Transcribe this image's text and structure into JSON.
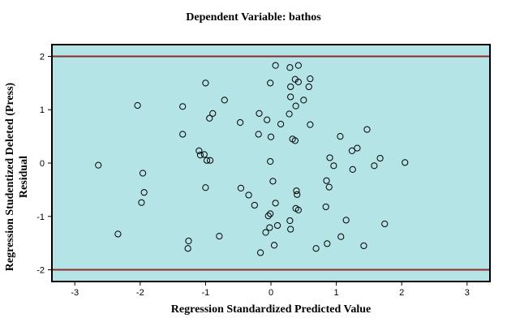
{
  "chart_data": {
    "type": "scatter",
    "title": "Dependent Variable: bathos",
    "xlabel": "Regression Standardized Predicted Value",
    "ylabel_line1": "Regression Studentized Deleted (Press)",
    "ylabel_line2": "Residual",
    "xlim": [
      -3.35,
      3.35
    ],
    "ylim": [
      -2.22,
      2.22
    ],
    "x_ticks": [
      -3,
      -2,
      -1,
      0,
      1,
      2,
      3
    ],
    "x_tick_labels": [
      "-3",
      "-2",
      "-1",
      "0",
      "1",
      "2",
      "3"
    ],
    "y_ticks": [
      -2,
      -1,
      0,
      1,
      2
    ],
    "y_tick_labels": [
      "-2",
      "-1",
      "0",
      "1",
      "2"
    ],
    "reference_lines_y": [
      2,
      -2
    ],
    "grid": false,
    "colors": {
      "plot_background": "#b4e4e6",
      "reference_line": "#8b2a2a",
      "marker_stroke": "#000000",
      "frame": "#000000"
    },
    "points": [
      {
        "x": 0.07,
        "y": 1.83
      },
      {
        "x": 0.29,
        "y": 1.79
      },
      {
        "x": 0.42,
        "y": 1.83
      },
      {
        "x": 0.37,
        "y": 1.57
      },
      {
        "x": 0.6,
        "y": 1.58
      },
      {
        "x": 0.42,
        "y": 1.52
      },
      {
        "x": -1.0,
        "y": 1.5
      },
      {
        "x": -0.01,
        "y": 1.5
      },
      {
        "x": 0.3,
        "y": 1.43
      },
      {
        "x": 0.58,
        "y": 1.43
      },
      {
        "x": 0.3,
        "y": 1.24
      },
      {
        "x": 0.5,
        "y": 1.18
      },
      {
        "x": -0.71,
        "y": 1.18
      },
      {
        "x": 0.38,
        "y": 1.07
      },
      {
        "x": -2.04,
        "y": 1.08
      },
      {
        "x": -1.35,
        "y": 1.06
      },
      {
        "x": -0.89,
        "y": 0.93
      },
      {
        "x": -0.18,
        "y": 0.93
      },
      {
        "x": 0.28,
        "y": 0.92
      },
      {
        "x": -0.94,
        "y": 0.84
      },
      {
        "x": -0.06,
        "y": 0.81
      },
      {
        "x": -0.47,
        "y": 0.76
      },
      {
        "x": 0.15,
        "y": 0.73
      },
      {
        "x": 0.6,
        "y": 0.72
      },
      {
        "x": 1.47,
        "y": 0.63
      },
      {
        "x": -1.35,
        "y": 0.54
      },
      {
        "x": -0.19,
        "y": 0.54
      },
      {
        "x": 1.06,
        "y": 0.5
      },
      {
        "x": 0.0,
        "y": 0.49
      },
      {
        "x": 0.33,
        "y": 0.45
      },
      {
        "x": 0.37,
        "y": 0.42
      },
      {
        "x": 1.32,
        "y": 0.28
      },
      {
        "x": 1.24,
        "y": 0.23
      },
      {
        "x": -1.1,
        "y": 0.23
      },
      {
        "x": -1.08,
        "y": 0.15
      },
      {
        "x": -1.02,
        "y": 0.16
      },
      {
        "x": 0.9,
        "y": 0.1
      },
      {
        "x": 1.67,
        "y": 0.09
      },
      {
        "x": -0.98,
        "y": 0.05
      },
      {
        "x": -0.93,
        "y": 0.05
      },
      {
        "x": -0.01,
        "y": 0.03
      },
      {
        "x": 2.05,
        "y": 0.01
      },
      {
        "x": -2.64,
        "y": -0.04
      },
      {
        "x": 0.96,
        "y": -0.05
      },
      {
        "x": 1.58,
        "y": -0.05
      },
      {
        "x": 1.25,
        "y": -0.12
      },
      {
        "x": -1.96,
        "y": -0.19
      },
      {
        "x": 0.85,
        "y": -0.33
      },
      {
        "x": 0.03,
        "y": -0.34
      },
      {
        "x": -1.0,
        "y": -0.46
      },
      {
        "x": 0.89,
        "y": -0.45
      },
      {
        "x": -0.46,
        "y": -0.47
      },
      {
        "x": 0.39,
        "y": -0.52
      },
      {
        "x": -1.94,
        "y": -0.55
      },
      {
        "x": -0.34,
        "y": -0.6
      },
      {
        "x": 0.4,
        "y": -0.59
      },
      {
        "x": -1.98,
        "y": -0.74
      },
      {
        "x": 0.07,
        "y": -0.75
      },
      {
        "x": -0.25,
        "y": -0.79
      },
      {
        "x": 0.84,
        "y": -0.82
      },
      {
        "x": 0.38,
        "y": -0.85
      },
      {
        "x": 0.42,
        "y": -0.88
      },
      {
        "x": -0.01,
        "y": -0.95
      },
      {
        "x": -0.04,
        "y": -0.99
      },
      {
        "x": 1.15,
        "y": -1.07
      },
      {
        "x": 0.29,
        "y": -1.08
      },
      {
        "x": 1.74,
        "y": -1.14
      },
      {
        "x": 0.1,
        "y": -1.17
      },
      {
        "x": -0.02,
        "y": -1.21
      },
      {
        "x": 0.3,
        "y": -1.24
      },
      {
        "x": -0.08,
        "y": -1.3
      },
      {
        "x": -2.34,
        "y": -1.33
      },
      {
        "x": -0.79,
        "y": -1.37
      },
      {
        "x": 1.07,
        "y": -1.38
      },
      {
        "x": -1.26,
        "y": -1.46
      },
      {
        "x": 0.86,
        "y": -1.51
      },
      {
        "x": 0.05,
        "y": -1.54
      },
      {
        "x": 1.42,
        "y": -1.55
      },
      {
        "x": -1.27,
        "y": -1.6
      },
      {
        "x": 0.69,
        "y": -1.6
      },
      {
        "x": -0.16,
        "y": -1.68
      }
    ]
  }
}
